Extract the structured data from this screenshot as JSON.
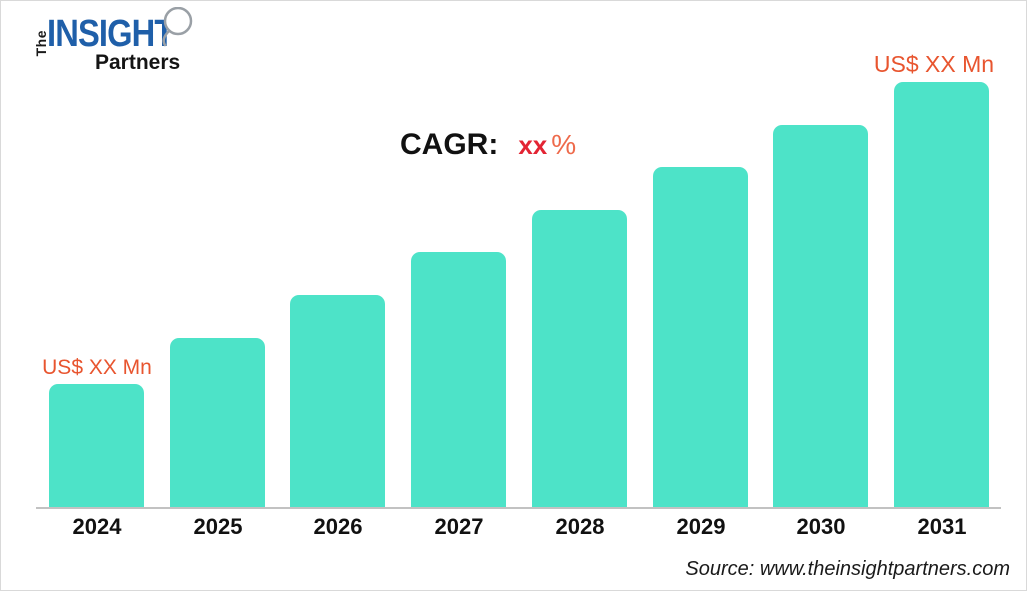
{
  "logo": {
    "word_the": "The",
    "word_insight": "INSIGHT",
    "word_partners": "Partners"
  },
  "annotations": {
    "first_bar_value": "US$ XX Mn",
    "last_bar_value": "US$ XX Mn",
    "cagr_label": "CAGR:",
    "cagr_value": "xx",
    "cagr_unit": "%"
  },
  "source_text": "Source: www.theinsightpartners.com",
  "colors": {
    "bar": "#4DE3C8",
    "value_label": "#E8552F",
    "cagr_value": "#E32433",
    "cagr_unit": "#EE6A4B",
    "logo_blue": "#1F5FA9",
    "axis_line": "#C2C2C2"
  },
  "chart_data": {
    "type": "bar",
    "title": "",
    "categories": [
      "2024",
      "2025",
      "2026",
      "2027",
      "2028",
      "2029",
      "2030",
      "2031"
    ],
    "values": [
      29,
      40,
      50,
      60,
      70,
      80,
      90,
      100
    ],
    "values_note": "Actual values are masked as 'XX' in the image; values are relative bar heights with 2031 = 100.",
    "xlabel": "",
    "ylabel": "",
    "ylim": [
      0,
      100
    ],
    "grid": false,
    "legend": false,
    "bar_color": "#4DE3C8",
    "annotations": [
      {
        "target": "2024",
        "text": "US$ XX Mn",
        "position": "above-bar"
      },
      {
        "target": "2031",
        "text": "US$ XX Mn",
        "position": "above-bar"
      },
      {
        "target": "chart",
        "text": "CAGR: xx %",
        "position": "upper-middle"
      }
    ]
  }
}
